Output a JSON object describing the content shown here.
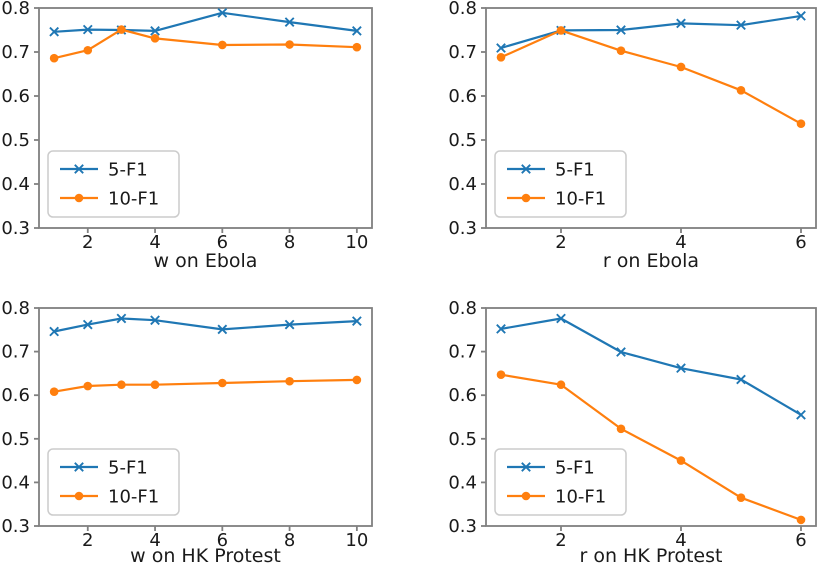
{
  "figure": {
    "background": "#ffffff",
    "text_color": "#1a1a1a",
    "spine_color": "#808080",
    "legend_border_color": "#cccccc",
    "legend_fill_color": "#ffffff"
  },
  "legend": {
    "entries": [
      "5-F1",
      "10-F1"
    ],
    "position": "lower-left"
  },
  "chart_data": [
    {
      "id": "w-ebola",
      "type": "line",
      "title": "",
      "xlabel": "w on Ebola",
      "ylabel": "",
      "x": [
        1,
        2,
        3,
        4,
        6,
        8,
        10
      ],
      "xticks": [
        2,
        4,
        6,
        8,
        10
      ],
      "yticks": [
        0.3,
        0.4,
        0.5,
        0.6,
        0.7,
        0.8
      ],
      "ylim": [
        0.3,
        0.8
      ],
      "grid": false,
      "legend_position": "lower-left",
      "series": [
        {
          "name": "5-F1",
          "marker": "x",
          "color": "#1f77b4",
          "values": [
            0.746,
            0.751,
            0.75,
            0.748,
            0.789,
            0.768,
            0.748
          ]
        },
        {
          "name": "10-F1",
          "marker": "o",
          "color": "#ff7f0e",
          "values": [
            0.686,
            0.704,
            0.751,
            0.731,
            0.716,
            0.717,
            0.711
          ]
        }
      ]
    },
    {
      "id": "r-ebola",
      "type": "line",
      "title": "",
      "xlabel": "r on Ebola",
      "ylabel": "",
      "x": [
        1,
        2,
        3,
        4,
        5,
        6
      ],
      "xticks": [
        2,
        4,
        6
      ],
      "yticks": [
        0.3,
        0.4,
        0.5,
        0.6,
        0.7,
        0.8
      ],
      "ylim": [
        0.3,
        0.8
      ],
      "grid": false,
      "legend_position": "lower-left",
      "series": [
        {
          "name": "5-F1",
          "marker": "x",
          "color": "#1f77b4",
          "values": [
            0.709,
            0.749,
            0.75,
            0.765,
            0.761,
            0.782
          ]
        },
        {
          "name": "10-F1",
          "marker": "o",
          "color": "#ff7f0e",
          "values": [
            0.688,
            0.749,
            0.703,
            0.666,
            0.613,
            0.537
          ]
        }
      ]
    },
    {
      "id": "w-hk-protest",
      "type": "line",
      "title": "",
      "xlabel": "w on HK Protest",
      "ylabel": "",
      "x": [
        1,
        2,
        3,
        4,
        6,
        8,
        10
      ],
      "xticks": [
        2,
        4,
        6,
        8,
        10
      ],
      "yticks": [
        0.3,
        0.4,
        0.5,
        0.6,
        0.7,
        0.8
      ],
      "ylim": [
        0.3,
        0.8
      ],
      "grid": false,
      "legend_position": "lower-left",
      "series": [
        {
          "name": "5-F1",
          "marker": "x",
          "color": "#1f77b4",
          "values": [
            0.746,
            0.762,
            0.776,
            0.772,
            0.751,
            0.762,
            0.77
          ]
        },
        {
          "name": "10-F1",
          "marker": "o",
          "color": "#ff7f0e",
          "values": [
            0.608,
            0.621,
            0.624,
            0.624,
            0.628,
            0.632,
            0.635
          ]
        }
      ]
    },
    {
      "id": "r-hk-protest",
      "type": "line",
      "title": "",
      "xlabel": "r on HK Protest",
      "ylabel": "",
      "x": [
        1,
        2,
        3,
        4,
        5,
        6
      ],
      "xticks": [
        2,
        4,
        6
      ],
      "yticks": [
        0.3,
        0.4,
        0.5,
        0.6,
        0.7,
        0.8
      ],
      "ylim": [
        0.3,
        0.8
      ],
      "grid": false,
      "legend_position": "lower-left",
      "series": [
        {
          "name": "5-F1",
          "marker": "x",
          "color": "#1f77b4",
          "values": [
            0.752,
            0.776,
            0.699,
            0.662,
            0.636,
            0.555
          ]
        },
        {
          "name": "10-F1",
          "marker": "o",
          "color": "#ff7f0e",
          "values": [
            0.647,
            0.624,
            0.523,
            0.45,
            0.365,
            0.314
          ]
        }
      ]
    }
  ]
}
